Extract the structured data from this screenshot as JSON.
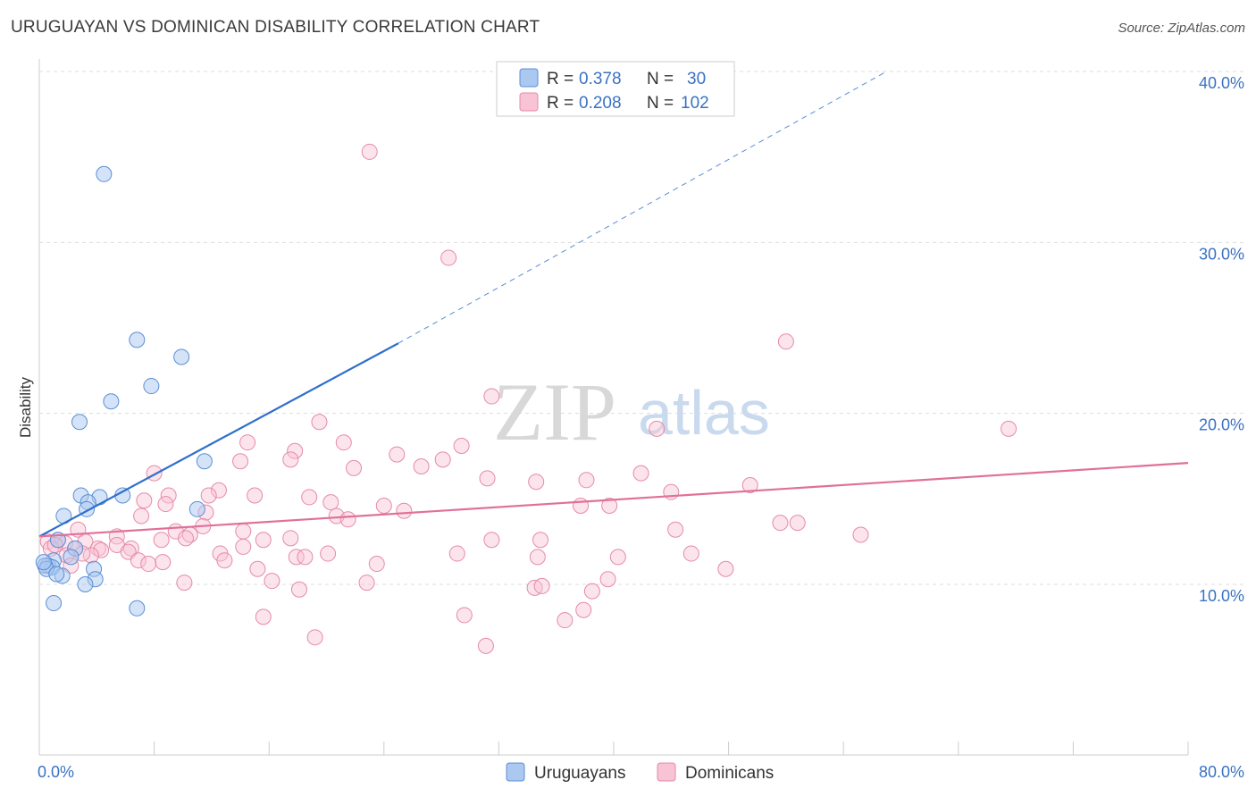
{
  "title": "URUGUAYAN VS DOMINICAN DISABILITY CORRELATION CHART",
  "source": "Source: ZipAtlas.com",
  "watermark": {
    "zip": "ZIP",
    "atlas": "atlas"
  },
  "colors": {
    "uruguayan_fill": "#aac8f0",
    "uruguayan_stroke": "#5b8fd6",
    "uruguayan_line": "#2f6fcc",
    "dominican_fill": "#f8c3d4",
    "dominican_stroke": "#e68aa8",
    "dominican_line": "#e0709a",
    "tick_label": "#3a72c4",
    "grid": "#dddddd"
  },
  "legend": {
    "rows": [
      {
        "r_label": "R =",
        "r_value": "0.378",
        "n_label": "N =",
        "n_value": "30"
      },
      {
        "r_label": "R =",
        "r_value": "0.208",
        "n_label": "N =",
        "n_value": "102"
      }
    ]
  },
  "bottom_legend": [
    "Uruguayans",
    "Dominicans"
  ],
  "chart_data": {
    "type": "scatter",
    "title": "URUGUAYAN VS DOMINICAN DISABILITY CORRELATION CHART",
    "xlabel": "",
    "ylabel": "Disability",
    "xlim": [
      0,
      80
    ],
    "ylim": [
      0,
      42
    ],
    "x_tick_labels": [
      "0.0%",
      "80.0%"
    ],
    "y_ticks": [
      10,
      20,
      30,
      40
    ],
    "y_tick_labels": [
      "10.0%",
      "20.0%",
      "30.0%",
      "40.0%"
    ],
    "grid": "horizontal dashed",
    "legend_position": "top-center",
    "series": [
      {
        "name": "Uruguayans",
        "r": 0.378,
        "n": 30,
        "trend": {
          "x": [
            0,
            25
          ],
          "y": [
            12.8,
            24.1
          ],
          "extended_to": [
            59,
            40.0
          ]
        },
        "points": [
          [
            4.5,
            34
          ],
          [
            6.8,
            24.3
          ],
          [
            9.9,
            23.3
          ],
          [
            5.0,
            20.7
          ],
          [
            7.8,
            21.6
          ],
          [
            2.8,
            19.5
          ],
          [
            11.5,
            17.2
          ],
          [
            2.9,
            15.2
          ],
          [
            4.2,
            15.1
          ],
          [
            5.8,
            15.2
          ],
          [
            3.4,
            14.8
          ],
          [
            3.3,
            14.4
          ],
          [
            1.7,
            14.0
          ],
          [
            11.0,
            14.4
          ],
          [
            1.3,
            12.6
          ],
          [
            2.5,
            12.1
          ],
          [
            2.2,
            11.6
          ],
          [
            1.0,
            11.4
          ],
          [
            0.6,
            11.1
          ],
          [
            0.9,
            11.0
          ],
          [
            0.4,
            11.1
          ],
          [
            0.5,
            10.9
          ],
          [
            0.3,
            11.3
          ],
          [
            3.8,
            10.9
          ],
          [
            1.6,
            10.5
          ],
          [
            1.2,
            10.6
          ],
          [
            3.9,
            10.3
          ],
          [
            3.2,
            10.0
          ],
          [
            1.0,
            8.9
          ],
          [
            6.8,
            8.6
          ]
        ]
      },
      {
        "name": "Dominicans",
        "r": 0.208,
        "n": 102,
        "trend": {
          "x": [
            0,
            80
          ],
          "y": [
            12.8,
            17.1
          ]
        },
        "points": [
          [
            23,
            35.3
          ],
          [
            28.5,
            29.1
          ],
          [
            52,
            24.2
          ],
          [
            31.5,
            21.0
          ],
          [
            43,
            19.1
          ],
          [
            67.5,
            19.1
          ],
          [
            19.5,
            19.5
          ],
          [
            14.5,
            18.3
          ],
          [
            21.2,
            18.3
          ],
          [
            29.4,
            18.1
          ],
          [
            17.8,
            17.8
          ],
          [
            24.9,
            17.6
          ],
          [
            14.0,
            17.2
          ],
          [
            17.5,
            17.3
          ],
          [
            28.1,
            17.3
          ],
          [
            21.9,
            16.8
          ],
          [
            26.6,
            16.9
          ],
          [
            8.0,
            16.5
          ],
          [
            41.9,
            16.5
          ],
          [
            31.2,
            16.2
          ],
          [
            38.1,
            16.1
          ],
          [
            34.6,
            16.0
          ],
          [
            49.5,
            15.8
          ],
          [
            12.5,
            15.5
          ],
          [
            44.0,
            15.4
          ],
          [
            9.0,
            15.2
          ],
          [
            11.8,
            15.2
          ],
          [
            15.0,
            15.2
          ],
          [
            18.8,
            15.1
          ],
          [
            20.3,
            14.8
          ],
          [
            8.8,
            14.7
          ],
          [
            7.3,
            14.9
          ],
          [
            24.0,
            14.6
          ],
          [
            39.7,
            14.6
          ],
          [
            37.7,
            14.6
          ],
          [
            25.4,
            14.3
          ],
          [
            11.6,
            14.2
          ],
          [
            7.1,
            14.0
          ],
          [
            20.7,
            14.0
          ],
          [
            21.5,
            13.8
          ],
          [
            51.6,
            13.6
          ],
          [
            52.8,
            13.6
          ],
          [
            11.4,
            13.4
          ],
          [
            2.7,
            13.2
          ],
          [
            44.3,
            13.2
          ],
          [
            9.5,
            13.1
          ],
          [
            14.2,
            13.1
          ],
          [
            10.5,
            12.9
          ],
          [
            5.4,
            12.8
          ],
          [
            10.2,
            12.7
          ],
          [
            57.2,
            12.9
          ],
          [
            15.6,
            12.6
          ],
          [
            17.5,
            12.7
          ],
          [
            3.2,
            12.5
          ],
          [
            1.3,
            12.6
          ],
          [
            0.6,
            12.5
          ],
          [
            8.5,
            12.6
          ],
          [
            1.8,
            12.4
          ],
          [
            5.4,
            12.3
          ],
          [
            31.5,
            12.6
          ],
          [
            34.9,
            12.6
          ],
          [
            0.8,
            12.1
          ],
          [
            1.1,
            12.3
          ],
          [
            4.1,
            12.1
          ],
          [
            6.4,
            12.1
          ],
          [
            14.2,
            12.2
          ],
          [
            2.5,
            12.1
          ],
          [
            6.2,
            11.9
          ],
          [
            4.3,
            12.0
          ],
          [
            12.6,
            11.8
          ],
          [
            1.9,
            11.7
          ],
          [
            3.6,
            11.7
          ],
          [
            3.0,
            11.8
          ],
          [
            20.1,
            11.8
          ],
          [
            29.1,
            11.8
          ],
          [
            34.7,
            11.6
          ],
          [
            40.3,
            11.6
          ],
          [
            17.9,
            11.6
          ],
          [
            18.5,
            11.6
          ],
          [
            12.9,
            11.4
          ],
          [
            6.9,
            11.4
          ],
          [
            8.6,
            11.3
          ],
          [
            2.2,
            11.1
          ],
          [
            23.5,
            11.2
          ],
          [
            45.4,
            11.8
          ],
          [
            7.6,
            11.2
          ],
          [
            15.2,
            10.9
          ],
          [
            47.8,
            10.9
          ],
          [
            16.2,
            10.2
          ],
          [
            39.6,
            10.3
          ],
          [
            22.8,
            10.1
          ],
          [
            10.1,
            10.1
          ],
          [
            34.5,
            9.8
          ],
          [
            18.1,
            9.7
          ],
          [
            38.5,
            9.6
          ],
          [
            35.0,
            9.9
          ],
          [
            37.9,
            8.5
          ],
          [
            29.6,
            8.2
          ],
          [
            15.6,
            8.1
          ],
          [
            36.6,
            7.9
          ],
          [
            19.2,
            6.9
          ],
          [
            31.1,
            6.4
          ]
        ]
      }
    ]
  }
}
